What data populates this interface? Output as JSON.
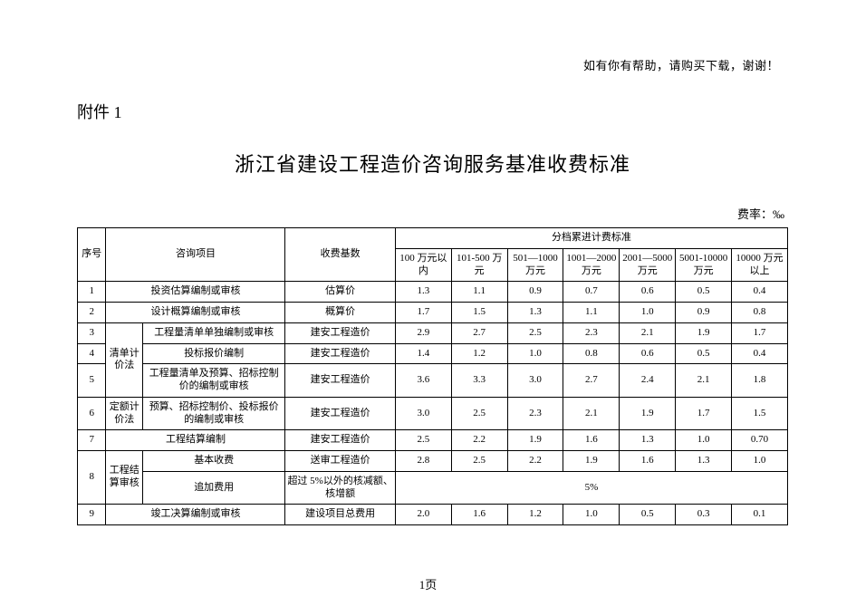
{
  "header_note": "如有你有帮助，请购买下载，谢谢！",
  "appendix_label": "附件 1",
  "title": "浙江省建设工程造价咨询服务基准收费标准",
  "rate_unit": "费率：‰",
  "page_num": "1页",
  "head": {
    "seq": "序号",
    "item": "咨询项目",
    "basis": "收费基数",
    "tier_group": "分档累进计费标准",
    "tiers": [
      "100 万元以内",
      "101-500 万元",
      "501—1000 万元",
      "1001—2000 万元",
      "2001—5000 万元",
      "5001-10000 万元",
      "10000 万元以上"
    ]
  },
  "subgroup_a": "清单计价法",
  "subgroup_b": "定额计价法",
  "subgroup_c": "工程结算审核",
  "rows": {
    "r1": {
      "seq": "1",
      "item": "投资估算编制或审核",
      "basis": "估算价",
      "v": [
        "1.3",
        "1.1",
        "0.9",
        "0.7",
        "0.6",
        "0.5",
        "0.4"
      ]
    },
    "r2": {
      "seq": "2",
      "item": "设计概算编制或审核",
      "basis": "概算价",
      "v": [
        "1.7",
        "1.5",
        "1.3",
        "1.1",
        "1.0",
        "0.9",
        "0.8"
      ]
    },
    "r3": {
      "seq": "3",
      "item": "工程量清单单独编制或审核",
      "basis": "建安工程造价",
      "v": [
        "2.9",
        "2.7",
        "2.5",
        "2.3",
        "2.1",
        "1.9",
        "1.7"
      ]
    },
    "r4": {
      "seq": "4",
      "item": "投标报价编制",
      "basis": "建安工程造价",
      "v": [
        "1.4",
        "1.2",
        "1.0",
        "0.8",
        "0.6",
        "0.5",
        "0.4"
      ]
    },
    "r5": {
      "seq": "5",
      "item": "工程量清单及预算、招标控制价的编制或审核",
      "basis": "建安工程造价",
      "v": [
        "3.6",
        "3.3",
        "3.0",
        "2.7",
        "2.4",
        "2.1",
        "1.8"
      ]
    },
    "r6": {
      "seq": "6",
      "item": "预算、招标控制价、投标报价的编制或审核",
      "basis": "建安工程造价",
      "v": [
        "3.0",
        "2.5",
        "2.3",
        "2.1",
        "1.9",
        "1.7",
        "1.5"
      ]
    },
    "r7": {
      "seq": "7",
      "item": "工程结算编制",
      "basis": "建安工程造价",
      "v": [
        "2.5",
        "2.2",
        "1.9",
        "1.6",
        "1.3",
        "1.0",
        "0.70"
      ]
    },
    "r8a": {
      "item": "基本收费",
      "basis": "送审工程造价",
      "v": [
        "2.8",
        "2.5",
        "2.2",
        "1.9",
        "1.6",
        "1.3",
        "1.0"
      ]
    },
    "r8b": {
      "seq": "8",
      "item": "追加费用",
      "basis": "超过 5%以外的核减额、核增额",
      "span": "5%"
    },
    "r9": {
      "seq": "9",
      "item": "竣工决算编制或审核",
      "basis": "建设项目总费用",
      "v": [
        "2.0",
        "1.6",
        "1.2",
        "1.0",
        "0.5",
        "0.3",
        "0.1"
      ]
    }
  }
}
